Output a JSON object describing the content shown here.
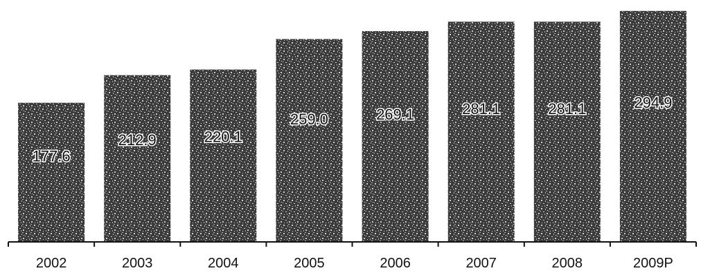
{
  "chart_data": {
    "type": "bar",
    "categories": [
      "2002",
      "2003",
      "2004",
      "2005",
      "2006",
      "2007",
      "2008",
      "2009P"
    ],
    "values": [
      177.6,
      212.9,
      220.1,
      259.0,
      269.1,
      281.1,
      281.1,
      294.9
    ],
    "data_labels": [
      "177.6",
      "212.9",
      "220.1",
      "259.0",
      "269.1",
      "281.1",
      "281.1",
      "294.9"
    ],
    "title": "",
    "xlabel": "",
    "ylabel": "",
    "ylim": [
      0,
      300
    ],
    "grid": false,
    "legend": "none",
    "colors": {
      "bar": "#3a3a3a",
      "bar_noise_light": "#cfcfcf",
      "label_text": "#111111",
      "axis": "#111111",
      "background": "#ffffff"
    }
  }
}
